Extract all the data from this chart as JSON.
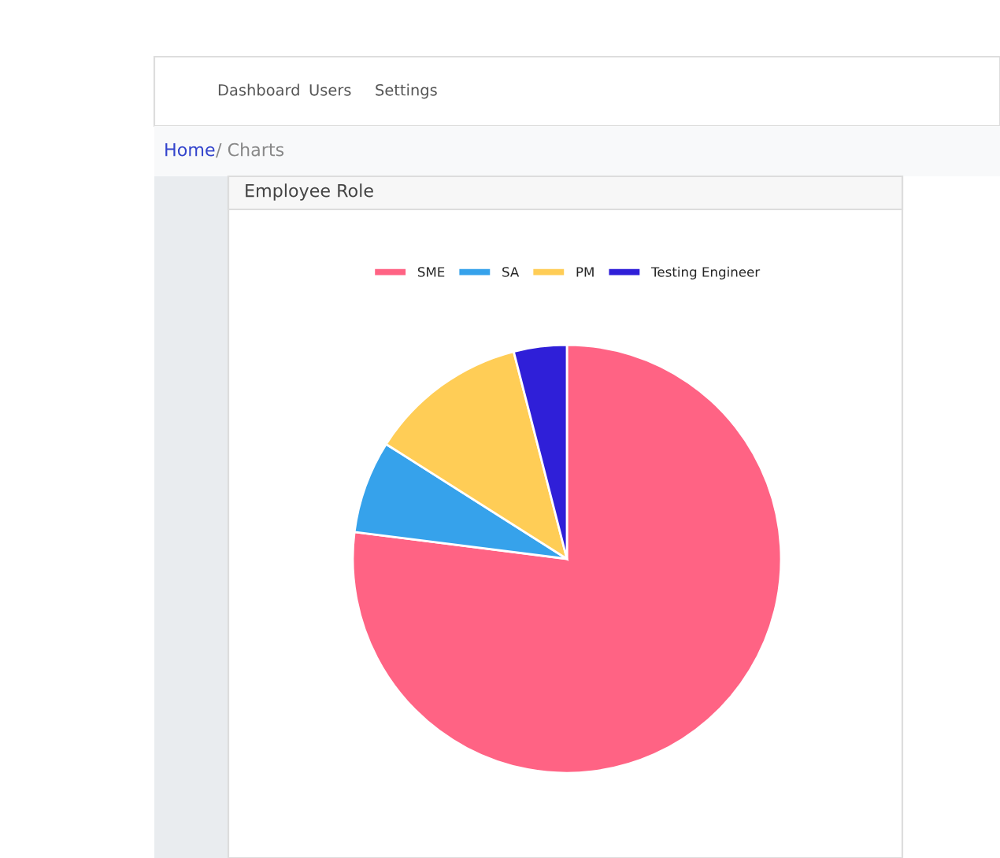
{
  "chart_data": {
    "type": "pie",
    "title": "Employee Role",
    "categories": [
      "SME",
      "SA",
      "PM",
      "Testing Engineer"
    ],
    "values": [
      77,
      7,
      12,
      4
    ],
    "colors": [
      "#ff6384",
      "#36a2eb",
      "#ffcd56",
      "#2f1fd8"
    ],
    "legend": "top",
    "annotations": [
      "Dashboard",
      "Users",
      "Settings",
      "Home",
      "/ Charts"
    ]
  }
}
